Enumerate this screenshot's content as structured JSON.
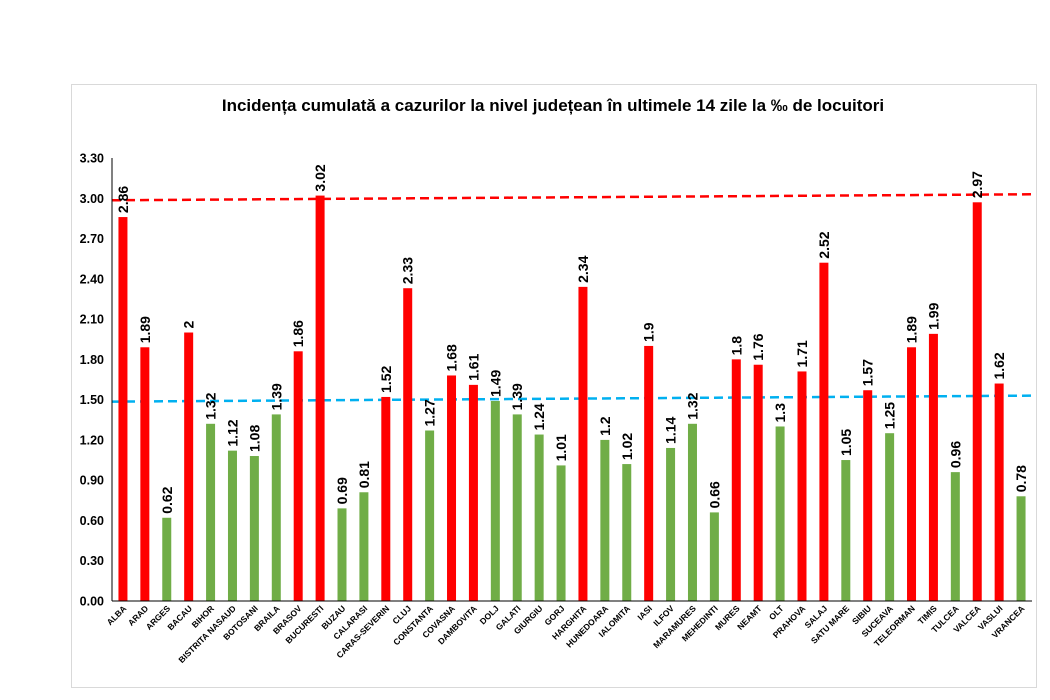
{
  "chart_data": {
    "type": "bar",
    "title": "Incidența cumulată a cazurilor la nivel județean în ultimele 14 zile la ‰ de locuitori",
    "xlabel": "",
    "ylabel": "",
    "ylim": [
      0,
      3.3
    ],
    "yticks": [
      "0.00",
      "0.30",
      "0.60",
      "0.90",
      "1.20",
      "1.50",
      "1.80",
      "2.10",
      "2.40",
      "2.70",
      "3.00",
      "3.30"
    ],
    "categories": [
      "ALBA",
      "ARAD",
      "ARGES",
      "BACAU",
      "BIHOR",
      "BISTRITA NASAUD",
      "BOTOSANI",
      "BRAILA",
      "BRASOV",
      "BUCURESTI",
      "BUZAU",
      "CALARASI",
      "CARAS-SEVERIN",
      "CLUJ",
      "CONSTANTA",
      "COVASNA",
      "DAMBOVITA",
      "DOLJ",
      "GALATI",
      "GIURGIU",
      "GORJ",
      "HARGHITA",
      "HUNEDOARA",
      "IALOMITA",
      "IASI",
      "ILFOV",
      "MARAMURES",
      "MEHEDINTI",
      "MURES",
      "NEAMT",
      "OLT",
      "PRAHOVA",
      "SALAJ",
      "SATU MARE",
      "SIBIU",
      "SUCEAVA",
      "TELEORMAN",
      "TIMIS",
      "TULCEA",
      "VALCEA",
      "VASLUI",
      "VRANCEA"
    ],
    "values": [
      2.86,
      1.89,
      0.62,
      2,
      1.32,
      1.12,
      1.08,
      1.39,
      1.86,
      3.02,
      0.69,
      0.81,
      1.52,
      2.33,
      1.27,
      1.68,
      1.61,
      1.49,
      1.39,
      1.24,
      1.01,
      2.34,
      1.2,
      1.02,
      1.9,
      1.14,
      1.32,
      0.66,
      1.8,
      1.76,
      1.3,
      1.71,
      2.52,
      1.05,
      1.57,
      1.25,
      1.89,
      1.99,
      0.96,
      2.97,
      1.62,
      0.78
    ],
    "value_labels": [
      "2.86",
      "1.89",
      "0.62",
      "2",
      "1.32",
      "1.12",
      "1.08",
      "1.39",
      "1.86",
      "3.02",
      "0.69",
      "0.81",
      "1.52",
      "2.33",
      "1.27",
      "1.68",
      "1.61",
      "1.49",
      "1.39",
      "1.24",
      "1.01",
      "2.34",
      "1.2",
      "1.02",
      "1.9",
      "1.14",
      "1.32",
      "0.66",
      "1.8",
      "1.76",
      "1.3",
      "1.71",
      "2.52",
      "1.05",
      "1.57",
      "1.25",
      "1.89",
      "1.99",
      "0.96",
      "2.97",
      "1.62",
      "0.78"
    ],
    "thresholds": [
      {
        "value": 3.0,
        "color": "#ff0000",
        "style": "dashed"
      },
      {
        "value": 1.5,
        "color": "#00b0f0",
        "style": "dashed"
      }
    ],
    "colors": {
      "above": "#ff0000",
      "below": "#70ad47"
    },
    "grid": false,
    "legend": "none"
  }
}
